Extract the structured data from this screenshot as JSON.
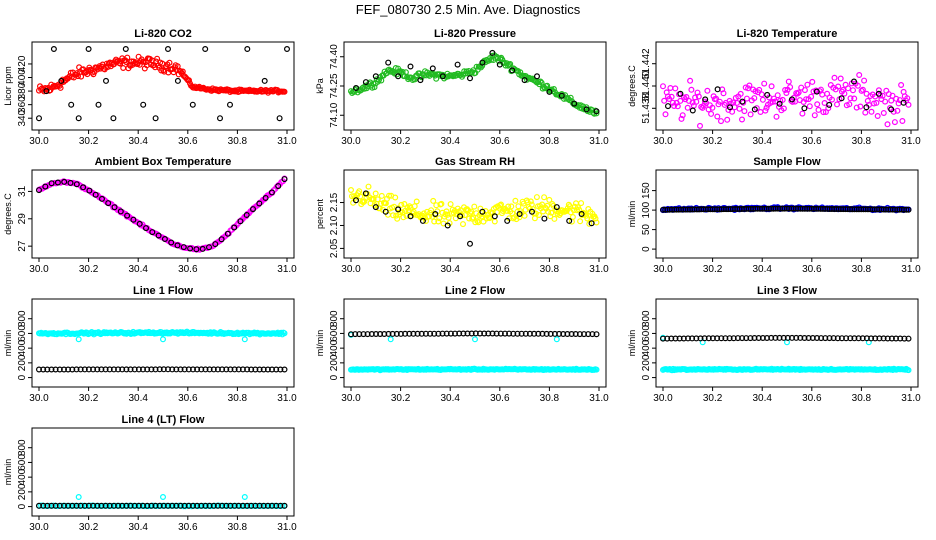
{
  "title": "FEF_080730  2.5 Min. Ave. Diagnostics",
  "colors": {
    "black": "#000000",
    "red": "#ff0000",
    "green": "#22bb22",
    "magenta": "#ff00ff",
    "yellow": "#ffff00",
    "blue": "#0000ff",
    "cyan": "#00ffff"
  },
  "chart_data": [
    {
      "id": "co2",
      "type": "scatter",
      "title": "Li-820 CO2",
      "ylabel": "Licor ppm",
      "xlim": [
        30.0,
        31.0
      ],
      "ylim": [
        330,
        445
      ],
      "xticks": [
        30.0,
        30.2,
        30.4,
        30.6,
        30.8,
        31.0
      ],
      "xtick_labels": [
        "30.0",
        "30.2",
        "30.4",
        "30.6",
        "30.8",
        "31.0"
      ],
      "yticks": [
        340,
        360,
        380,
        400,
        420
      ],
      "ytick_labels": [
        "340",
        "360",
        "380",
        "400",
        "420"
      ],
      "series": [
        {
          "name": "primary",
          "color": "red",
          "x": [
            30.0,
            30.05,
            30.1,
            30.15,
            30.2,
            30.25,
            30.3,
            30.35,
            30.4,
            30.45,
            30.5,
            30.55,
            30.58,
            30.62,
            30.7,
            30.8,
            30.9,
            30.99
          ],
          "y": [
            380,
            384,
            395,
            405,
            410,
            415,
            420,
            422,
            422,
            421,
            418,
            415,
            405,
            386,
            382,
            380,
            380,
            380
          ],
          "noise": 6,
          "noise_until": 30.58,
          "noise_after": 1.5,
          "density": 240
        },
        {
          "name": "reference",
          "color": "black",
          "x": [
            30.0,
            30.03,
            30.06,
            30.09,
            30.13,
            30.16,
            30.2,
            30.24,
            30.27,
            30.3,
            30.35,
            30.42,
            30.47,
            30.52,
            30.56,
            30.62,
            30.67,
            30.73,
            30.77,
            30.84,
            30.91,
            30.97,
            31.0
          ],
          "y": [
            340,
            380,
            442,
            395,
            360,
            340,
            442,
            360,
            395,
            340,
            442,
            360,
            340,
            442,
            395,
            360,
            442,
            340,
            360,
            442,
            395,
            340,
            442
          ],
          "noise": 0,
          "density": 0
        }
      ]
    },
    {
      "id": "pressure",
      "type": "scatter",
      "title": "Li-820 Pressure",
      "ylabel": "kPa",
      "xlim": [
        30.0,
        31.0
      ],
      "ylim": [
        74.05,
        74.45
      ],
      "xticks": [
        30.0,
        30.2,
        30.4,
        30.6,
        30.8,
        31.0
      ],
      "xtick_labels": [
        "30.0",
        "30.2",
        "30.4",
        "30.6",
        "30.8",
        "31.0"
      ],
      "yticks": [
        74.1,
        74.25,
        74.4
      ],
      "ytick_labels": [
        "74.10",
        "74.25",
        "74.40"
      ],
      "series": [
        {
          "name": "primary",
          "color": "green",
          "x": [
            30.0,
            30.05,
            30.1,
            30.15,
            30.2,
            30.25,
            30.3,
            30.4,
            30.45,
            30.5,
            30.55,
            30.58,
            30.62,
            30.7,
            30.8,
            30.9,
            30.99
          ],
          "y": [
            74.22,
            74.24,
            74.27,
            74.33,
            74.32,
            74.29,
            74.31,
            74.3,
            74.31,
            74.33,
            74.38,
            74.4,
            74.37,
            74.3,
            74.24,
            74.16,
            74.11
          ],
          "noise": 0.012,
          "density": 220
        },
        {
          "name": "reference",
          "color": "black",
          "x": [
            30.02,
            30.06,
            30.1,
            30.15,
            30.19,
            30.24,
            30.28,
            30.33,
            30.37,
            30.43,
            30.48,
            30.53,
            30.57,
            30.6,
            30.65,
            30.7,
            30.75,
            30.8,
            30.85,
            30.9,
            30.95,
            30.99
          ],
          "y": [
            74.24,
            74.27,
            74.3,
            74.37,
            74.3,
            74.35,
            74.28,
            74.34,
            74.3,
            74.36,
            74.29,
            74.37,
            74.42,
            74.36,
            74.33,
            74.28,
            74.3,
            74.22,
            74.2,
            74.16,
            74.13,
            74.12
          ],
          "noise": 0,
          "density": 0
        }
      ]
    },
    {
      "id": "licor-temp",
      "type": "scatter",
      "title": "Li-820 Temperature",
      "ylabel": "degrees.C",
      "xlim": [
        30.0,
        31.0
      ],
      "ylim": [
        51.4365,
        51.4435
      ],
      "xticks": [
        30.0,
        30.2,
        30.4,
        30.6,
        30.8,
        31.0
      ],
      "xtick_labels": [
        "30.0",
        "30.2",
        "30.4",
        "30.6",
        "30.8",
        "31.0"
      ],
      "yticks": [
        51.438,
        51.44,
        51.442
      ],
      "ytick_labels": [
        "51.438",
        "51.440",
        "51.442"
      ],
      "series": [
        {
          "name": "primary",
          "color": "magenta",
          "x": [
            30.0,
            30.2,
            30.4,
            30.55,
            30.7,
            30.8,
            30.9,
            30.99
          ],
          "y": [
            51.4385,
            51.4385,
            51.4388,
            51.439,
            51.4392,
            51.4392,
            51.4385,
            51.4383
          ],
          "noise": 0.0012,
          "density": 200
        },
        {
          "name": "reference",
          "color": "black",
          "x": [
            30.02,
            30.07,
            30.12,
            30.17,
            30.22,
            30.27,
            30.32,
            30.37,
            30.42,
            30.47,
            30.52,
            30.57,
            30.62,
            30.67,
            30.72,
            30.77,
            30.82,
            30.87,
            30.92,
            30.97
          ],
          "y": [
            51.4382,
            51.4393,
            51.4378,
            51.4388,
            51.4397,
            51.4381,
            51.4386,
            51.4379,
            51.4392,
            51.4384,
            51.4388,
            51.438,
            51.4395,
            51.4383,
            51.4389,
            51.4404,
            51.4381,
            51.4393,
            51.4379,
            51.4385
          ],
          "noise": 0,
          "density": 0
        }
      ]
    },
    {
      "id": "box-temp",
      "type": "scatter",
      "title": "Ambient Box Temperature",
      "ylabel": "degrees.C",
      "xlim": [
        30.0,
        31.0
      ],
      "ylim": [
        26.5,
        32.2
      ],
      "xticks": [
        30.0,
        30.2,
        30.4,
        30.6,
        30.8,
        31.0
      ],
      "xtick_labels": [
        "30.0",
        "30.2",
        "30.4",
        "30.6",
        "30.8",
        "31.0"
      ],
      "yticks": [
        27,
        29,
        31
      ],
      "ytick_labels": [
        "27",
        "29",
        "31"
      ],
      "series": [
        {
          "name": "primary",
          "color": "magenta",
          "x": [
            30.0,
            30.05,
            30.1,
            30.15,
            30.2,
            30.25,
            30.3,
            30.35,
            30.4,
            30.45,
            30.5,
            30.55,
            30.6,
            30.65,
            30.7,
            30.75,
            30.8,
            30.85,
            30.9,
            30.95,
            30.99
          ],
          "y": [
            31.1,
            31.6,
            31.7,
            31.55,
            31.1,
            30.5,
            29.9,
            29.3,
            28.7,
            28.1,
            27.6,
            27.1,
            26.85,
            26.75,
            27.0,
            27.7,
            28.6,
            29.5,
            30.3,
            31.1,
            31.9
          ],
          "noise": 0.05,
          "density": 160
        },
        {
          "name": "reference",
          "color": "black",
          "x": [
            30.0,
            30.05,
            30.1,
            30.15,
            30.2,
            30.25,
            30.3,
            30.35,
            30.4,
            30.45,
            30.5,
            30.55,
            30.6,
            30.65,
            30.7,
            30.75,
            30.8,
            30.85,
            30.9,
            30.95,
            30.99
          ],
          "y": [
            31.1,
            31.6,
            31.7,
            31.55,
            31.1,
            30.5,
            29.9,
            29.3,
            28.7,
            28.1,
            27.6,
            27.1,
            26.85,
            26.75,
            27.0,
            27.7,
            28.6,
            29.5,
            30.3,
            31.1,
            31.9
          ],
          "noise": 0,
          "density": 0,
          "interp": 40
        }
      ]
    },
    {
      "id": "rh",
      "type": "scatter",
      "title": "Gas Stream RH",
      "ylabel": "percent",
      "xlim": [
        30.0,
        31.0
      ],
      "ylim": [
        2.04,
        2.21
      ],
      "xticks": [
        30.0,
        30.2,
        30.4,
        30.6,
        30.8,
        31.0
      ],
      "xtick_labels": [
        "30.0",
        "30.2",
        "30.4",
        "30.6",
        "30.8",
        "31.0"
      ],
      "yticks": [
        2.05,
        2.1,
        2.15
      ],
      "ytick_labels": [
        "2.05",
        "2.10",
        "2.15"
      ],
      "series": [
        {
          "name": "primary",
          "color": "yellow",
          "x": [
            30.0,
            30.05,
            30.1,
            30.2,
            30.3,
            30.4,
            30.5,
            30.6,
            30.7,
            30.8,
            30.9,
            30.99
          ],
          "y": [
            2.16,
            2.165,
            2.15,
            2.13,
            2.125,
            2.12,
            2.125,
            2.13,
            2.135,
            2.14,
            2.13,
            2.12
          ],
          "noise": 0.018,
          "density": 240
        },
        {
          "name": "reference",
          "color": "black",
          "x": [
            30.02,
            30.06,
            30.1,
            30.14,
            30.19,
            30.24,
            30.29,
            30.34,
            30.39,
            30.44,
            30.48,
            30.53,
            30.58,
            30.63,
            30.68,
            30.73,
            30.78,
            30.83,
            30.88,
            30.93,
            30.97
          ],
          "y": [
            2.155,
            2.17,
            2.14,
            2.13,
            2.135,
            2.12,
            2.11,
            2.125,
            2.1,
            2.12,
            2.06,
            2.13,
            2.12,
            2.11,
            2.125,
            2.13,
            2.115,
            2.14,
            2.11,
            2.125,
            2.105
          ],
          "noise": 0,
          "density": 0
        }
      ]
    },
    {
      "id": "sample-flow",
      "type": "scatter",
      "title": "Sample Flow",
      "ylabel": "ml/min",
      "xlim": [
        30.0,
        31.0
      ],
      "ylim": [
        -10,
        190
      ],
      "xticks": [
        30.0,
        30.2,
        30.4,
        30.6,
        30.8,
        31.0
      ],
      "xtick_labels": [
        "30.0",
        "30.2",
        "30.4",
        "30.6",
        "30.8",
        "31.0"
      ],
      "yticks": [
        0,
        50,
        100,
        150
      ],
      "ytick_labels": [
        "0",
        "50",
        "100",
        "150"
      ],
      "series": [
        {
          "name": "primary",
          "color": "blue",
          "x": [
            30.0,
            30.5,
            30.99
          ],
          "y": [
            102,
            105,
            102
          ],
          "noise": 2,
          "density": 200
        },
        {
          "name": "reference",
          "color": "black",
          "x": [
            30.0,
            30.5,
            30.99
          ],
          "y": [
            101,
            104,
            101
          ],
          "noise": 0,
          "density": 0,
          "interp": 110
        }
      ]
    },
    {
      "id": "line1-flow",
      "type": "scatter",
      "title": "Line 1 Flow",
      "ylabel": "ml/min",
      "xlim": [
        30.0,
        31.0
      ],
      "ylim": [
        -60,
        1000
      ],
      "xticks": [
        30.0,
        30.2,
        30.4,
        30.6,
        30.8,
        31.0
      ],
      "xtick_labels": [
        "30.0",
        "30.2",
        "30.4",
        "30.6",
        "30.8",
        "31.0"
      ],
      "yticks": [
        0,
        200,
        400,
        600,
        800
      ],
      "ytick_labels": [
        "0",
        "200",
        "400",
        "600",
        "800"
      ],
      "series": [
        {
          "name": "primary",
          "color": "cyan",
          "x": [
            30.0,
            30.5,
            30.99
          ],
          "y": [
            600,
            610,
            600
          ],
          "noise": 10,
          "density": 220
        },
        {
          "name": "primary-dips",
          "color": "cyan",
          "x": [
            30.16,
            30.5,
            30.83
          ],
          "y": [
            520,
            520,
            520
          ],
          "noise": 0,
          "density": 0
        },
        {
          "name": "reference",
          "color": "black",
          "x": [
            30.0,
            30.5,
            30.99
          ],
          "y": [
            110,
            112,
            110
          ],
          "noise": 0,
          "density": 0,
          "interp": 60
        }
      ]
    },
    {
      "id": "line2-flow",
      "type": "scatter",
      "title": "Line 2 Flow",
      "ylabel": "ml/min",
      "xlim": [
        30.0,
        31.0
      ],
      "ylim": [
        -60,
        1000
      ],
      "xticks": [
        30.0,
        30.2,
        30.4,
        30.6,
        30.8,
        31.0
      ],
      "xtick_labels": [
        "30.0",
        "30.2",
        "30.4",
        "30.6",
        "30.8",
        "31.0"
      ],
      "yticks": [
        0,
        200,
        400,
        600,
        800
      ],
      "ytick_labels": [
        "0",
        "200",
        "400",
        "600",
        "800"
      ],
      "series": [
        {
          "name": "primary",
          "color": "cyan",
          "x": [
            30.0,
            30.5,
            30.99
          ],
          "y": [
            110,
            112,
            110
          ],
          "noise": 6,
          "density": 220
        },
        {
          "name": "primary-dips",
          "color": "cyan",
          "x": [
            30.0,
            30.16,
            30.5,
            30.83
          ],
          "y": [
            580,
            520,
            520,
            520
          ],
          "noise": 0,
          "density": 0
        },
        {
          "name": "reference",
          "color": "black",
          "x": [
            30.0,
            30.5,
            30.99
          ],
          "y": [
            590,
            600,
            590
          ],
          "noise": 0,
          "density": 0,
          "interp": 60
        }
      ]
    },
    {
      "id": "line3-flow",
      "type": "scatter",
      "title": "Line 3 Flow",
      "ylabel": "ml/min",
      "xlim": [
        30.0,
        31.0
      ],
      "ylim": [
        -60,
        1000
      ],
      "xticks": [
        30.0,
        30.2,
        30.4,
        30.6,
        30.8,
        31.0
      ],
      "xtick_labels": [
        "30.0",
        "30.2",
        "30.4",
        "30.6",
        "30.8",
        "31.0"
      ],
      "yticks": [
        0,
        200,
        400,
        600,
        800
      ],
      "ytick_labels": [
        "0",
        "200",
        "400",
        "600",
        "800"
      ],
      "series": [
        {
          "name": "primary",
          "color": "cyan",
          "x": [
            30.0,
            30.5,
            30.99
          ],
          "y": [
            110,
            112,
            110
          ],
          "noise": 6,
          "density": 220
        },
        {
          "name": "primary-dips",
          "color": "cyan",
          "x": [
            30.0,
            30.16,
            30.5,
            30.83
          ],
          "y": [
            540,
            480,
            480,
            480
          ],
          "noise": 0,
          "density": 0
        },
        {
          "name": "reference",
          "color": "black",
          "x": [
            30.0,
            30.5,
            30.99
          ],
          "y": [
            530,
            540,
            530
          ],
          "noise": 0,
          "density": 0,
          "interp": 60
        }
      ]
    },
    {
      "id": "line4-flow",
      "type": "scatter",
      "title": "Line 4 (LT) Flow",
      "ylabel": "ml/min",
      "xlim": [
        30.0,
        31.0
      ],
      "ylim": [
        -60,
        1000
      ],
      "xticks": [
        30.0,
        30.2,
        30.4,
        30.6,
        30.8,
        31.0
      ],
      "xtick_labels": [
        "30.0",
        "30.2",
        "30.4",
        "30.6",
        "30.8",
        "31.0"
      ],
      "yticks": [
        0,
        200,
        400,
        600,
        800
      ],
      "ytick_labels": [
        "0",
        "200",
        "400",
        "600",
        "800"
      ],
      "series": [
        {
          "name": "primary",
          "color": "cyan",
          "x": [
            30.0,
            30.5,
            30.99
          ],
          "y": [
            10,
            10,
            10
          ],
          "noise": 3,
          "density": 120
        },
        {
          "name": "primary-spikes",
          "color": "cyan",
          "x": [
            30.16,
            30.5,
            30.83
          ],
          "y": [
            130,
            130,
            130
          ],
          "noise": 0,
          "density": 0
        },
        {
          "name": "reference",
          "color": "black",
          "x": [
            30.0,
            30.5,
            30.99
          ],
          "y": [
            10,
            10,
            10
          ],
          "noise": 0,
          "density": 0,
          "interp": 60
        }
      ]
    }
  ]
}
